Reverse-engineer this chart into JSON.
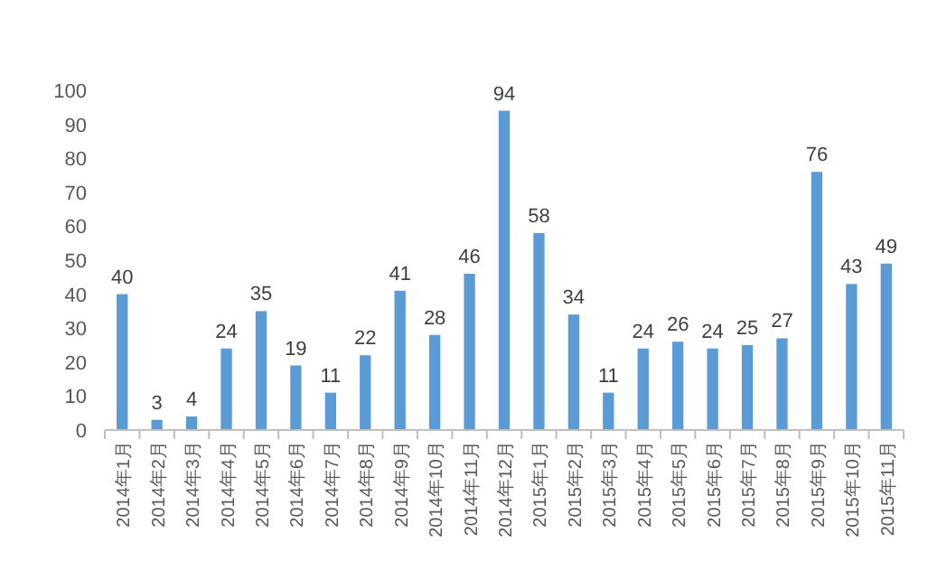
{
  "chart_data": {
    "type": "bar",
    "categories": [
      "2014年1月",
      "2014年2月",
      "2014年3月",
      "2014年4月",
      "2014年5月",
      "2014年6月",
      "2014年7月",
      "2014年8月",
      "2014年9月",
      "2014年10月",
      "2014年11月",
      "2014年12月",
      "2015年1月",
      "2015年2月",
      "2015年3月",
      "2015年4月",
      "2015年5月",
      "2015年6月",
      "2015年7月",
      "2015年8月",
      "2015年9月",
      "2015年10月",
      "2015年11月"
    ],
    "values": [
      40,
      3,
      4,
      24,
      35,
      19,
      11,
      22,
      41,
      28,
      46,
      94,
      58,
      34,
      11,
      24,
      26,
      24,
      25,
      27,
      76,
      43,
      49
    ],
    "color": "#5b9bd5",
    "ylim": [
      0,
      100
    ],
    "yticks": [
      0,
      10,
      20,
      30,
      40,
      50,
      60,
      70,
      80,
      90,
      100
    ],
    "data_labels": true
  }
}
